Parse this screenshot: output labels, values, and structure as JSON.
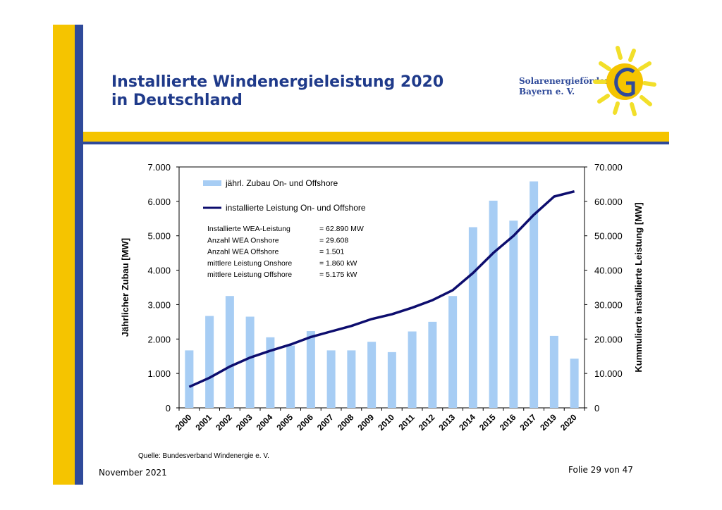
{
  "slide": {
    "title_line1": "Installierte Windenergieleistung 2020",
    "title_line2": "in Deutschland",
    "logo_line1": "Solarenergieförderverein",
    "logo_line2": "Bayern e. V.",
    "source": "Quelle: Bundesverband Windenergie e. V.",
    "date": "November 2021",
    "page": "Folie 29 von 47"
  },
  "colors": {
    "accent_yellow": "#f5c400",
    "accent_blue": "#2f4a9a",
    "bar": "#a7cdf4",
    "line": "#0d0d6e",
    "title": "#1f3a8a"
  },
  "chart_data": {
    "type": "bar",
    "categories": [
      "2000",
      "2001",
      "2002",
      "2003",
      "2004",
      "2005",
      "2006",
      "2007",
      "2008",
      "2009",
      "2010",
      "2011",
      "2012",
      "2013",
      "2014",
      "2015",
      "2016",
      "2017",
      "2019",
      "2020"
    ],
    "series": [
      {
        "name": "jährl. Zubau On- und Offshore",
        "type": "bar",
        "axis": "left",
        "values": [
          1670,
          2670,
          3250,
          2650,
          2050,
          1810,
          2230,
          1670,
          1670,
          1920,
          1620,
          2220,
          2500,
          3250,
          5250,
          6020,
          5440,
          6580,
          2090,
          1430
        ]
      },
      {
        "name": "installierte Leistung On- und Offshore",
        "type": "line",
        "axis": "right",
        "values": [
          6100,
          8750,
          12000,
          14600,
          16600,
          18400,
          20600,
          22200,
          23800,
          25800,
          27200,
          29100,
          31300,
          34200,
          39200,
          45000,
          50000,
          56100,
          61400,
          62890
        ]
      }
    ],
    "ylabel": "Jährlicher Zubau [MW]",
    "ylabel_right": "Kummulierte installierte Leistung [MW]",
    "ylim": [
      0,
      7000
    ],
    "ylim_right": [
      0,
      70000
    ],
    "yticks": [
      "0",
      "1.000",
      "2.000",
      "3.000",
      "4.000",
      "5.000",
      "6.000",
      "7.000"
    ],
    "yticks_right": [
      "0",
      "10.000",
      "20.000",
      "30.000",
      "40.000",
      "50.000",
      "60.000",
      "70.000"
    ],
    "annotations": [
      {
        "label": "Installierte WEA-Leistung",
        "value": "=  62.890 MW"
      },
      {
        "label": "Anzahl WEA Onshore",
        "value": "=  29.608"
      },
      {
        "label": "Anzahl WEA Offshore",
        "value": "=  1.501"
      },
      {
        "label": "mittlere Leistung Onshore",
        "value": "= 1.860 kW"
      },
      {
        "label": "mittlere Leistung Offshore",
        "value": "=  5.175 kW"
      }
    ],
    "legend_position": "top-left"
  }
}
